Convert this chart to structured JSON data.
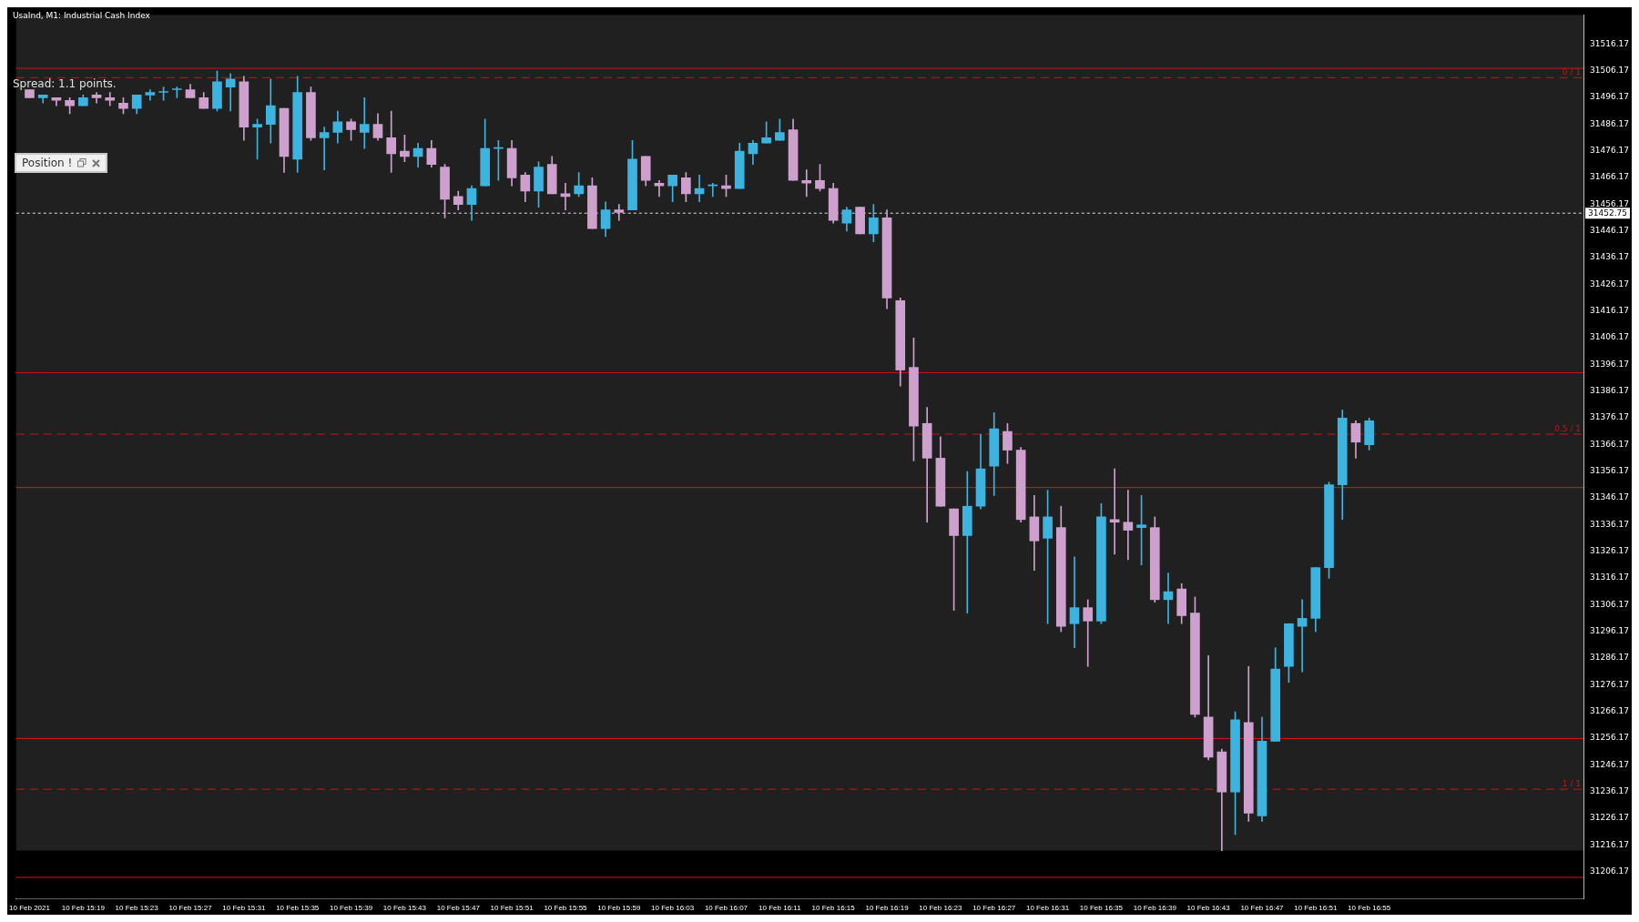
{
  "chart_data": {
    "type": "candlestick",
    "title": "UsaInd, M1: Industrial Cash Index",
    "annotations": [
      "Spread: 1.1 points.",
      "Position !",
      {
        "text": "0 / 1",
        "y": 31503.5
      },
      {
        "text": "0.5 / 1",
        "y": 31370
      },
      {
        "text": "1 / 1",
        "y": 31237
      }
    ],
    "x": [
      "2021-02-10T15:15",
      "2021-02-10T15:16",
      "2021-02-10T15:17",
      "2021-02-10T15:18",
      "2021-02-10T15:19",
      "2021-02-10T15:20",
      "2021-02-10T15:21",
      "2021-02-10T15:22",
      "2021-02-10T15:23",
      "2021-02-10T15:24",
      "2021-02-10T15:25",
      "2021-02-10T15:26",
      "2021-02-10T15:27",
      "2021-02-10T15:28",
      "2021-02-10T15:29",
      "2021-02-10T15:30",
      "2021-02-10T15:31",
      "2021-02-10T15:32",
      "2021-02-10T15:33",
      "2021-02-10T15:34",
      "2021-02-10T15:35",
      "2021-02-10T15:36",
      "2021-02-10T15:37",
      "2021-02-10T15:38",
      "2021-02-10T15:39",
      "2021-02-10T15:40",
      "2021-02-10T15:41",
      "2021-02-10T15:42",
      "2021-02-10T15:43",
      "2021-02-10T15:44",
      "2021-02-10T15:45",
      "2021-02-10T15:46",
      "2021-02-10T15:47",
      "2021-02-10T15:48",
      "2021-02-10T15:49",
      "2021-02-10T15:50",
      "2021-02-10T15:51",
      "2021-02-10T15:52",
      "2021-02-10T15:53",
      "2021-02-10T15:54",
      "2021-02-10T15:55",
      "2021-02-10T15:56",
      "2021-02-10T15:57",
      "2021-02-10T15:58",
      "2021-02-10T15:59",
      "2021-02-10T16:00",
      "2021-02-10T16:01",
      "2021-02-10T16:02",
      "2021-02-10T16:03",
      "2021-02-10T16:04",
      "2021-02-10T16:05",
      "2021-02-10T16:06",
      "2021-02-10T16:07",
      "2021-02-10T16:08",
      "2021-02-10T16:09",
      "2021-02-10T16:10",
      "2021-02-10T16:11",
      "2021-02-10T16:12",
      "2021-02-10T16:13",
      "2021-02-10T16:14",
      "2021-02-10T16:15",
      "2021-02-10T16:16",
      "2021-02-10T16:17",
      "2021-02-10T16:18",
      "2021-02-10T16:19",
      "2021-02-10T16:20",
      "2021-02-10T16:21",
      "2021-02-10T16:22",
      "2021-02-10T16:23",
      "2021-02-10T16:24",
      "2021-02-10T16:25",
      "2021-02-10T16:26",
      "2021-02-10T16:27",
      "2021-02-10T16:28",
      "2021-02-10T16:29",
      "2021-02-10T16:30",
      "2021-02-10T16:31",
      "2021-02-10T16:32",
      "2021-02-10T16:33",
      "2021-02-10T16:34",
      "2021-02-10T16:35",
      "2021-02-10T16:36",
      "2021-02-10T16:37",
      "2021-02-10T16:38",
      "2021-02-10T16:39",
      "2021-02-10T16:40",
      "2021-02-10T16:41",
      "2021-02-10T16:42",
      "2021-02-10T16:43",
      "2021-02-10T16:44",
      "2021-02-10T16:45",
      "2021-02-10T16:46",
      "2021-02-10T16:47",
      "2021-02-10T16:48",
      "2021-02-10T16:49",
      "2021-02-10T16:50",
      "2021-02-10T16:51",
      "2021-02-10T16:52",
      "2021-02-10T16:53",
      "2021-02-10T16:54",
      "2021-02-10T16:55"
    ],
    "ohlc": [
      [
        31499,
        31499,
        31496,
        31496
      ],
      [
        31496,
        31497,
        31494,
        31497
      ],
      [
        31496,
        31496,
        31493,
        31495
      ],
      [
        31495,
        31496,
        31490,
        31493
      ],
      [
        31493,
        31497,
        31493,
        31496
      ],
      [
        31497,
        31498,
        31494,
        31496
      ],
      [
        31496,
        31498,
        31493,
        31495
      ],
      [
        31494,
        31496,
        31490,
        31492
      ],
      [
        31492,
        31497,
        31490,
        31497
      ],
      [
        31497,
        31499,
        31495,
        31498
      ],
      [
        31498,
        31500,
        31495,
        31498
      ],
      [
        31499,
        31500,
        31496,
        31499
      ],
      [
        31499,
        31501,
        31496,
        31496
      ],
      [
        31496,
        31498,
        31492,
        31492
      ],
      [
        31492,
        31506,
        31491,
        31502
      ],
      [
        31500,
        31505,
        31491,
        31503
      ],
      [
        31502,
        31504,
        31480,
        31485
      ],
      [
        31485,
        31488,
        31473,
        31486
      ],
      [
        31486,
        31503,
        31479,
        31493
      ],
      [
        31492,
        31492,
        31468,
        31474
      ],
      [
        31473,
        31504,
        31468,
        31498
      ],
      [
        31498,
        31500,
        31480,
        31481
      ],
      [
        31481,
        31485,
        31469,
        31483
      ],
      [
        31483,
        31491,
        31479,
        31487
      ],
      [
        31487,
        31488,
        31480,
        31484
      ],
      [
        31483,
        31496,
        31477,
        31486
      ],
      [
        31486,
        31490,
        31480,
        31481
      ],
      [
        31481,
        31491,
        31468,
        31475
      ],
      [
        31476,
        31482,
        31472,
        31474
      ],
      [
        31474,
        31479,
        31470,
        31477
      ],
      [
        31477,
        31480,
        31470,
        31471
      ],
      [
        31470,
        31471,
        31451,
        31458
      ],
      [
        31459,
        31461,
        31454,
        31456
      ],
      [
        31456,
        31463,
        31450,
        31462
      ],
      [
        31463,
        31488,
        31463,
        31477
      ],
      [
        31477,
        31480,
        31465,
        31477
      ],
      [
        31477,
        31480,
        31463,
        31466
      ],
      [
        31467,
        31468,
        31457,
        31461
      ],
      [
        31461,
        31472,
        31455,
        31470
      ],
      [
        31471,
        31474,
        31460,
        31460
      ],
      [
        31460,
        31464,
        31454,
        31459
      ],
      [
        31460,
        31468,
        31459,
        31463
      ],
      [
        31463,
        31466,
        31447,
        31447
      ],
      [
        31447,
        31457,
        31444,
        31454
      ],
      [
        31454,
        31456,
        31450,
        31453
      ],
      [
        31454,
        31480,
        31454,
        31473
      ],
      [
        31474,
        31474,
        31463,
        31465
      ],
      [
        31464,
        31465,
        31459,
        31463
      ],
      [
        31463,
        31467,
        31457,
        31467
      ],
      [
        31466,
        31468,
        31457,
        31460
      ],
      [
        31460,
        31467,
        31457,
        31462
      ],
      [
        31463,
        31464,
        31459,
        31463
      ],
      [
        31463,
        31467,
        31459,
        31462
      ],
      [
        31462,
        31479,
        31462,
        31476
      ],
      [
        31475,
        31480,
        31471,
        31479
      ],
      [
        31479,
        31487,
        31479,
        31481
      ],
      [
        31480,
        31488,
        31480,
        31483
      ],
      [
        31484,
        31488,
        31465,
        31465
      ],
      [
        31465,
        31469,
        31459,
        31464
      ],
      [
        31465,
        31471,
        31461,
        31462
      ],
      [
        31462,
        31464,
        31449,
        31450
      ],
      [
        31449,
        31455,
        31446,
        31454
      ],
      [
        31455,
        31455,
        31445,
        31445
      ],
      [
        31445,
        31456,
        31442,
        31451
      ],
      [
        31451,
        31454,
        31417,
        31421
      ],
      [
        31420,
        31421,
        31388,
        31394
      ],
      [
        31395,
        31406,
        31360,
        31373
      ],
      [
        31374,
        31380,
        31337,
        31361
      ],
      [
        31361,
        31369,
        31343,
        31343
      ],
      [
        31342,
        31342,
        31304,
        31332
      ],
      [
        31332,
        31356,
        31303,
        31343
      ],
      [
        31343,
        31370,
        31342,
        31357
      ],
      [
        31358,
        31378,
        31347,
        31372
      ],
      [
        31371,
        31374,
        31359,
        31364
      ],
      [
        31364,
        31365,
        31337,
        31338
      ],
      [
        31339,
        31347,
        31319,
        31330
      ],
      [
        31331,
        31349,
        31299,
        31339
      ],
      [
        31335,
        31343,
        31296,
        31298
      ],
      [
        31299,
        31324,
        31290,
        31305
      ],
      [
        31305,
        31308,
        31283,
        31300
      ],
      [
        31300,
        31344,
        31299,
        31339
      ],
      [
        31338,
        31357,
        31325,
        31337
      ],
      [
        31337,
        31349,
        31323,
        31334
      ],
      [
        31335,
        31347,
        31321,
        31336
      ],
      [
        31335,
        31339,
        31307,
        31308
      ],
      [
        31308,
        31318,
        31299,
        31311
      ],
      [
        31312,
        31314,
        31299,
        31302
      ],
      [
        31303,
        31309,
        31264,
        31265
      ],
      [
        31264,
        31287,
        31248,
        31249
      ],
      [
        31251,
        31252,
        31214,
        31236
      ],
      [
        31236,
        31266,
        31220,
        31263
      ],
      [
        31262,
        31283,
        31225,
        31228
      ],
      [
        31227,
        31264,
        31225,
        31255
      ],
      [
        31255,
        31290,
        31255,
        31282
      ],
      [
        31283,
        31299,
        31277,
        31299
      ],
      [
        31298,
        31308,
        31281,
        31301
      ],
      [
        31301,
        31320,
        31296,
        31320
      ],
      [
        31320,
        31352,
        31316,
        31351
      ],
      [
        31351,
        31379,
        31338,
        31376
      ],
      [
        31374,
        31375,
        31361,
        31367
      ],
      [
        31366,
        31376,
        31364,
        31375
      ]
    ],
    "colors": [
      "#cda0cd",
      "#3db3e0",
      "#cda0cd",
      "#cda0cd",
      "#3db3e0",
      "#cda0cd",
      "#cda0cd",
      "#cda0cd",
      "#3db3e0",
      "#3db3e0",
      "#3db3e0",
      "#3db3e0",
      "#cda0cd",
      "#cda0cd",
      "#3db3e0",
      "#3db3e0",
      "#cda0cd",
      "#3db3e0",
      "#3db3e0",
      "#cda0cd",
      "#3db3e0",
      "#cda0cd",
      "#3db3e0",
      "#3db3e0",
      "#cda0cd",
      "#3db3e0",
      "#cda0cd",
      "#cda0cd",
      "#cda0cd",
      "#3db3e0",
      "#cda0cd",
      "#cda0cd",
      "#cda0cd",
      "#3db3e0",
      "#3db3e0",
      "#3db3e0",
      "#cda0cd",
      "#cda0cd",
      "#3db3e0",
      "#cda0cd",
      "#cda0cd",
      "#3db3e0",
      "#cda0cd",
      "#3db3e0",
      "#cda0cd",
      "#3db3e0",
      "#cda0cd",
      "#cda0cd",
      "#3db3e0",
      "#cda0cd",
      "#3db3e0",
      "#3db3e0",
      "#cda0cd",
      "#3db3e0",
      "#3db3e0",
      "#3db3e0",
      "#3db3e0",
      "#cda0cd",
      "#cda0cd",
      "#cda0cd",
      "#cda0cd",
      "#3db3e0",
      "#cda0cd",
      "#3db3e0",
      "#cda0cd",
      "#cda0cd",
      "#cda0cd",
      "#cda0cd",
      "#cda0cd",
      "#cda0cd",
      "#3db3e0",
      "#3db3e0",
      "#3db3e0",
      "#cda0cd",
      "#cda0cd",
      "#cda0cd",
      "#3db3e0",
      "#cda0cd",
      "#3db3e0",
      "#cda0cd",
      "#3db3e0",
      "#cda0cd",
      "#cda0cd",
      "#3db3e0",
      "#cda0cd",
      "#3db3e0",
      "#cda0cd",
      "#cda0cd",
      "#cda0cd",
      "#cda0cd",
      "#3db3e0",
      "#cda0cd",
      "#3db3e0",
      "#3db3e0",
      "#3db3e0",
      "#3db3e0",
      "#3db3e0",
      "#3db3e0",
      "#3db3e0",
      "#cda0cd",
      "#3db3e0"
    ],
    "xlim": [
      "2021-02-10T15:14",
      "2021-02-10T17:11"
    ],
    "xticks": [
      {
        "value": "2021-02-10T15:15",
        "label": "10 Feb 2021"
      },
      {
        "value": "2021-02-10T15:19",
        "label": "10 Feb 15:19"
      },
      {
        "value": "2021-02-10T15:23",
        "label": "10 Feb 15:23"
      },
      {
        "value": "2021-02-10T15:27",
        "label": "10 Feb 15:27"
      },
      {
        "value": "2021-02-10T15:31",
        "label": "10 Feb 15:31"
      },
      {
        "value": "2021-02-10T15:35",
        "label": "10 Feb 15:35"
      },
      {
        "value": "2021-02-10T15:39",
        "label": "10 Feb 15:39"
      },
      {
        "value": "2021-02-10T15:43",
        "label": "10 Feb 15:43"
      },
      {
        "value": "2021-02-10T15:47",
        "label": "10 Feb 15:47"
      },
      {
        "value": "2021-02-10T15:51",
        "label": "10 Feb 15:51"
      },
      {
        "value": "2021-02-10T15:55",
        "label": "10 Feb 15:55"
      },
      {
        "value": "2021-02-10T15:59",
        "label": "10 Feb 15:59"
      },
      {
        "value": "2021-02-10T16:03",
        "label": "10 Feb 16:03"
      },
      {
        "value": "2021-02-10T16:07",
        "label": "10 Feb 16:07"
      },
      {
        "value": "2021-02-10T16:11",
        "label": "10 Feb 16:11"
      },
      {
        "value": "2021-02-10T16:15",
        "label": "10 Feb 16:15"
      },
      {
        "value": "2021-02-10T16:19",
        "label": "10 Feb 16:19"
      },
      {
        "value": "2021-02-10T16:23",
        "label": "10 Feb 16:23"
      },
      {
        "value": "2021-02-10T16:27",
        "label": "10 Feb 16:27"
      },
      {
        "value": "2021-02-10T16:31",
        "label": "10 Feb 16:31"
      },
      {
        "value": "2021-02-10T16:35",
        "label": "10 Feb 16:35"
      },
      {
        "value": "2021-02-10T16:39",
        "label": "10 Feb 16:39"
      },
      {
        "value": "2021-02-10T16:43",
        "label": "10 Feb 16:43"
      },
      {
        "value": "2021-02-10T16:47",
        "label": "10 Feb 16:47"
      },
      {
        "value": "2021-02-10T16:51",
        "label": "10 Feb 16:51"
      },
      {
        "value": "2021-02-10T16:55",
        "label": "10 Feb 16:55"
      }
    ],
    "ylim": [
      31196,
      31527
    ],
    "yticks": [
      31206.17,
      31216.17,
      31226.17,
      31236.17,
      31246.17,
      31256.17,
      31266.17,
      31276.17,
      31286.17,
      31296.17,
      31306.17,
      31316.17,
      31326.17,
      31336.17,
      31346.17,
      31356.17,
      31366.17,
      31376.17,
      31386.17,
      31396.17,
      31406.17,
      31416.17,
      31426.17,
      31436.17,
      31446.17,
      31456.17,
      31466.17,
      31476.17,
      31486.17,
      31496.17,
      31506.17,
      31516.17
    ],
    "bands": [
      {
        "axis": "y",
        "from": 31196,
        "to": 31214,
        "color": "#000000"
      }
    ],
    "ref_lines": [
      {
        "axis": "y",
        "value": 31507,
        "color": "#c81414",
        "line_style": "solid"
      },
      {
        "axis": "y",
        "value": 31503.5,
        "color": "#c81414",
        "line_style": "dashed"
      },
      {
        "axis": "y",
        "value": 31452.75,
        "label": "31452.75",
        "color": "#e0e0e0",
        "line_style": "dotted"
      },
      {
        "axis": "y",
        "value": 31393,
        "color": "#c81414",
        "line_style": "solid"
      },
      {
        "axis": "y",
        "value": 31370,
        "color": "#c81414",
        "line_style": "dashed"
      },
      {
        "axis": "y",
        "value": 31350,
        "color": "#e01414",
        "line_style": "solid"
      },
      {
        "axis": "y",
        "value": 31256,
        "color": "#e01414",
        "line_style": "solid"
      },
      {
        "axis": "y",
        "value": 31237,
        "color": "#c81414",
        "line_style": "dashed"
      },
      {
        "axis": "y",
        "value": 31204,
        "color": "#e01414",
        "line_style": "solid"
      }
    ],
    "grid": false,
    "legend": false
  }
}
